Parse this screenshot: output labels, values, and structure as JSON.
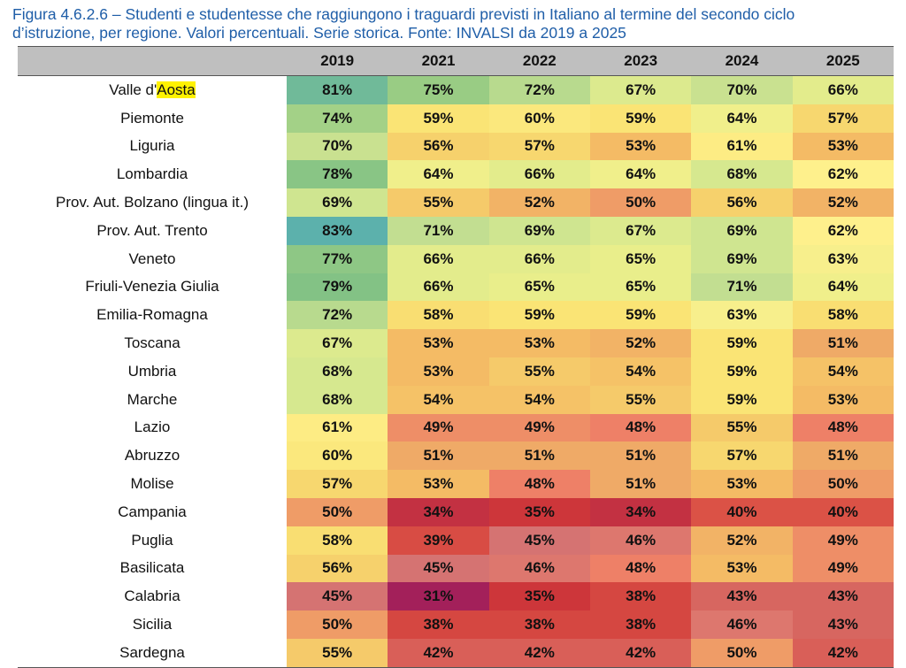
{
  "caption": {
    "line1": "Figura 4.6.2.6 – Studenti e studentesse che raggiungono i traguardi previsti in Italiano al termine del secondo ciclo",
    "line2": "d’istruzione, per regione. Valori percentuali. Serie storica. Fonte: INVALSI da 2019 a 2025"
  },
  "chart_data": {
    "type": "heatmap",
    "title": "Figura 4.6.2.6 – Studenti e studentesse che raggiungono i traguardi previsti in Italiano al termine del secondo ciclo d’istruzione, per regione. Valori percentuali. Serie storica. Fonte: INVALSI da 2019 a 2025",
    "columns": [
      "2019",
      "2021",
      "2022",
      "2023",
      "2024",
      "2025"
    ],
    "unit": "%",
    "color_scale": {
      "min": 31,
      "max": 83,
      "low_color": "#a3205a",
      "mid_color": "#fef08c",
      "high_color": "#5cb1ac"
    },
    "rows": [
      {
        "label_pre": "Valle d'",
        "label_hl": "Aosta",
        "label_post": "",
        "values": [
          81,
          75,
          72,
          67,
          70,
          66
        ]
      },
      {
        "label_pre": "Piemonte",
        "label_hl": "",
        "label_post": "",
        "values": [
          74,
          59,
          60,
          59,
          64,
          57
        ]
      },
      {
        "label_pre": "Liguria",
        "label_hl": "",
        "label_post": "",
        "values": [
          70,
          56,
          57,
          53,
          61,
          53
        ]
      },
      {
        "label_pre": "Lombardia",
        "label_hl": "",
        "label_post": "",
        "values": [
          78,
          64,
          66,
          64,
          68,
          62
        ]
      },
      {
        "label_pre": "Prov. Aut. Bolzano (lingua it.)",
        "label_hl": "",
        "label_post": "",
        "values": [
          69,
          55,
          52,
          50,
          56,
          52
        ]
      },
      {
        "label_pre": "Prov. Aut. Trento",
        "label_hl": "",
        "label_post": "",
        "values": [
          83,
          71,
          69,
          67,
          69,
          62
        ]
      },
      {
        "label_pre": "Veneto",
        "label_hl": "",
        "label_post": "",
        "values": [
          77,
          66,
          66,
          65,
          69,
          63
        ]
      },
      {
        "label_pre": "Friuli-Venezia Giulia",
        "label_hl": "",
        "label_post": "",
        "values": [
          79,
          66,
          65,
          65,
          71,
          64
        ]
      },
      {
        "label_pre": "Emilia-Romagna",
        "label_hl": "",
        "label_post": "",
        "values": [
          72,
          58,
          59,
          59,
          63,
          58
        ]
      },
      {
        "label_pre": "Toscana",
        "label_hl": "",
        "label_post": "",
        "values": [
          67,
          53,
          53,
          52,
          59,
          51
        ]
      },
      {
        "label_pre": "Umbria",
        "label_hl": "",
        "label_post": "",
        "values": [
          68,
          53,
          55,
          54,
          59,
          54
        ]
      },
      {
        "label_pre": "Marche",
        "label_hl": "",
        "label_post": "",
        "values": [
          68,
          54,
          54,
          55,
          59,
          53
        ]
      },
      {
        "label_pre": "Lazio",
        "label_hl": "",
        "label_post": "",
        "values": [
          61,
          49,
          49,
          48,
          55,
          48
        ]
      },
      {
        "label_pre": "Abruzzo",
        "label_hl": "",
        "label_post": "",
        "values": [
          60,
          51,
          51,
          51,
          57,
          51
        ]
      },
      {
        "label_pre": "Molise",
        "label_hl": "",
        "label_post": "",
        "values": [
          57,
          53,
          48,
          51,
          53,
          50
        ]
      },
      {
        "label_pre": "Campania",
        "label_hl": "",
        "label_post": "",
        "values": [
          50,
          34,
          35,
          34,
          40,
          40
        ]
      },
      {
        "label_pre": "Puglia",
        "label_hl": "",
        "label_post": "",
        "values": [
          58,
          39,
          45,
          46,
          52,
          49
        ]
      },
      {
        "label_pre": "Basilicata",
        "label_hl": "",
        "label_post": "",
        "values": [
          56,
          45,
          46,
          48,
          53,
          49
        ]
      },
      {
        "label_pre": "Calabria",
        "label_hl": "",
        "label_post": "",
        "values": [
          45,
          31,
          35,
          38,
          43,
          43
        ]
      },
      {
        "label_pre": "Sicilia",
        "label_hl": "",
        "label_post": "",
        "values": [
          50,
          38,
          38,
          38,
          46,
          43
        ]
      },
      {
        "label_pre": "Sardegna",
        "label_hl": "",
        "label_post": "",
        "values": [
          55,
          42,
          42,
          42,
          50,
          42
        ]
      }
    ]
  }
}
